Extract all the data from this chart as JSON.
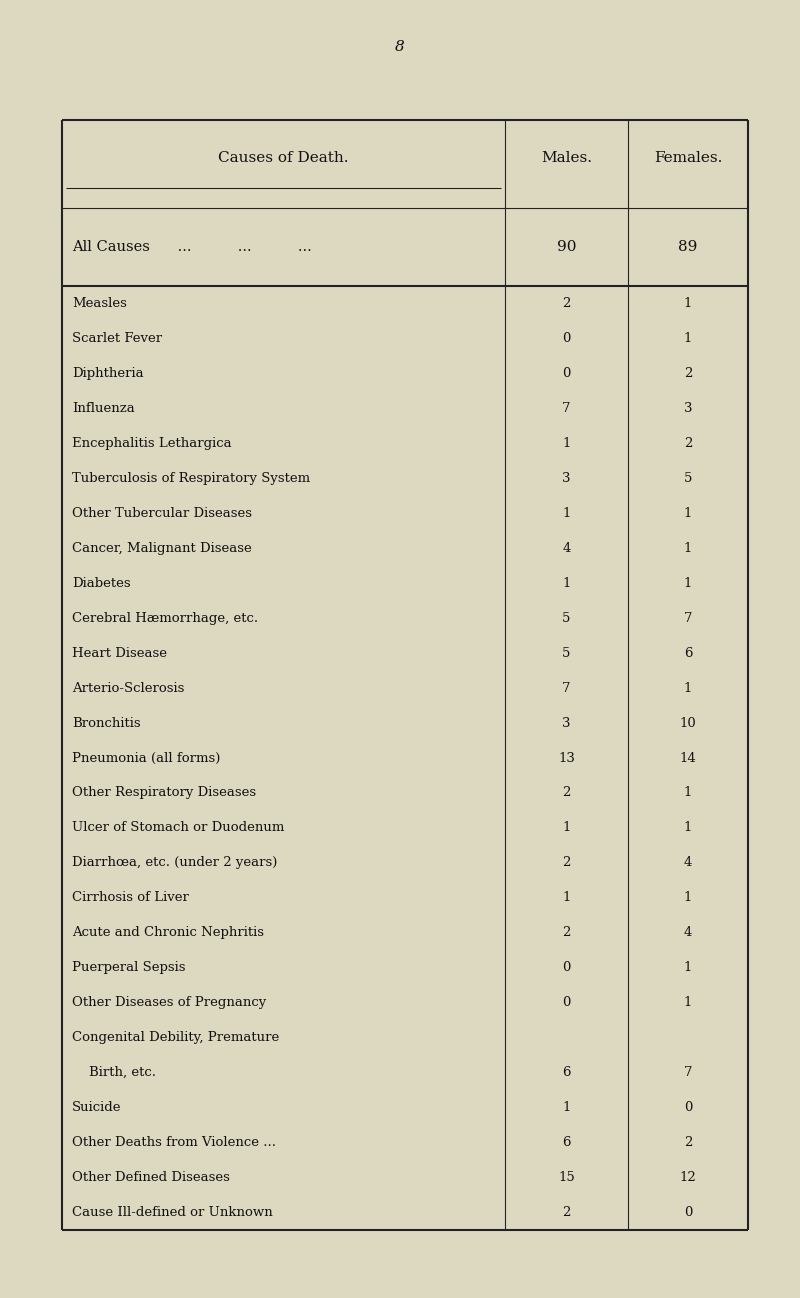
{
  "page_number": "8",
  "background_color": "#ddd8c0",
  "text_color": "#111111",
  "line_color": "#222222",
  "rows": [
    {
      "cause": "All Causes",
      "dots": "...          ...          ...",
      "males": "90",
      "females": "89",
      "is_summary": true
    },
    {
      "cause": "Measles",
      "dots": "...          ...          ...",
      "males": "2",
      "females": "1",
      "is_summary": false
    },
    {
      "cause": "Scarlet Fever",
      "dots": "...          ...          ...",
      "males": "0",
      "females": "1",
      "is_summary": false
    },
    {
      "cause": "Diphtheria",
      "dots": "...          ...          ...",
      "males": "0",
      "females": "2",
      "is_summary": false
    },
    {
      "cause": "Influenza",
      "dots": "...          ...          ...",
      "males": "7",
      "females": "3",
      "is_summary": false
    },
    {
      "cause": "Encephalitis Lethargica",
      "dots": "...          ...",
      "males": "1",
      "females": "2",
      "is_summary": false
    },
    {
      "cause": "Tuberculosis of Respiratory System",
      "dots": "…",
      "males": "3",
      "females": "5",
      "is_summary": false
    },
    {
      "cause": "Other Tubercular Diseases",
      "dots": "...          ...",
      "males": "1",
      "females": "1",
      "is_summary": false
    },
    {
      "cause": "Cancer, Malignant Disease",
      "dots": "...          ...",
      "males": "4",
      "females": "1",
      "is_summary": false
    },
    {
      "cause": "Diabetes",
      "dots": "...          ...          ...",
      "males": "1",
      "females": "1",
      "is_summary": false
    },
    {
      "cause": "Cerebral Hæmorrhage, etc.",
      "dots": "...          ...",
      "males": "5",
      "females": "7",
      "is_summary": false
    },
    {
      "cause": "Heart Disease",
      "dots": "...          ...          ...",
      "males": "5",
      "females": "6",
      "is_summary": false
    },
    {
      "cause": "Arterio-Sclerosis",
      "dots": "...          ...",
      "males": "7",
      "females": "1",
      "is_summary": false
    },
    {
      "cause": "Bronchitis",
      "dots": "...          ...          ...",
      "males": "3",
      "females": "10",
      "is_summary": false
    },
    {
      "cause": "Pneumonia (all forms)",
      "dots": "...          ...",
      "males": "13",
      "females": "14",
      "is_summary": false
    },
    {
      "cause": "Other Respiratory Diseases",
      "dots": ",...          ...",
      "males": "2",
      "females": "1",
      "is_summary": false
    },
    {
      "cause": "Ulcer of Stomach or Duodenum",
      "dots": "...",
      "males": "1",
      "females": "1",
      "is_summary": false
    },
    {
      "cause": "Diarrhœa, etc. (under 2 years)",
      "dots": "...",
      "males": "2",
      "females": "4",
      "is_summary": false
    },
    {
      "cause": "Cirrhosis of Liver",
      "dots": "...          ...",
      "males": "1",
      "females": "1",
      "is_summary": false
    },
    {
      "cause": "Acute and Chronic Nephritis",
      "dots": "...",
      "males": "2",
      "females": "4",
      "is_summary": false
    },
    {
      "cause": "Puerperal Sepsis",
      "dots": "...          ...",
      "males": "0",
      "females": "1",
      "is_summary": false
    },
    {
      "cause": "Other Diseases of Pregnancy",
      "dots": "...",
      "males": "0",
      "females": "1",
      "is_summary": false
    },
    {
      "cause": "Congenital Debility, Premature",
      "dots": "",
      "males": "",
      "females": "",
      "is_summary": false,
      "continuation": true
    },
    {
      "cause": "    Birth, etc.",
      "dots": "...          ...          ...",
      "males": "6",
      "females": "7",
      "is_summary": false
    },
    {
      "cause": "Suicide",
      "dots": "...          ...          ...",
      "males": "1",
      "females": "0",
      "is_summary": false
    },
    {
      "cause": "Other Deaths from Violence ...",
      "dots": "...",
      "males": "6",
      "females": "2",
      "is_summary": false
    },
    {
      "cause": "Other Defined Diseases",
      "dots": "...          ...",
      "males": "15",
      "females": "12",
      "is_summary": false
    },
    {
      "cause": "Cause Ill-defined or Unknown",
      "dots": "...",
      "males": "2",
      "females": "0",
      "is_summary": false
    }
  ],
  "font_size_header": 10.5,
  "font_size_body": 9.5,
  "font_size_summary": 10.5,
  "font_size_page": 11
}
